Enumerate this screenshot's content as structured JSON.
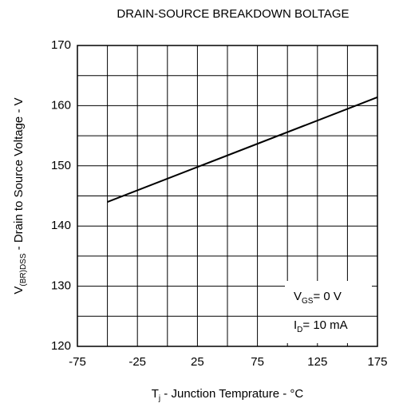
{
  "chart_data": {
    "type": "line",
    "title": "DRAIN-SOURCE BREAKDOWN BOLTAGE",
    "x_label": {
      "main": "T",
      "sub": "j",
      "rest": " - Junction Temprature - °C"
    },
    "y_label": {
      "main": "V",
      "sub": "(BR)DSS",
      "rest": " - Drain to Source Voltage - V"
    },
    "annotations": [
      {
        "main": "V",
        "sub": "GS",
        "rest": "= 0 V"
      },
      {
        "main": "I",
        "sub": "D",
        "rest": "= 10 mA"
      }
    ],
    "x": [
      -50,
      175
    ],
    "series": [
      {
        "color": "#000000",
        "values": [
          144,
          161.4
        ]
      }
    ],
    "xlim": [
      -75,
      175
    ],
    "xticks": [
      -75,
      -25,
      25,
      75,
      125,
      175
    ],
    "xgrid": [
      -50,
      0,
      50,
      100,
      150
    ],
    "ylim": [
      120,
      170
    ],
    "yticks": [
      120,
      130,
      140,
      150,
      160,
      170
    ],
    "ygrid": [
      125,
      135,
      145,
      155,
      165
    ],
    "grid": true
  }
}
